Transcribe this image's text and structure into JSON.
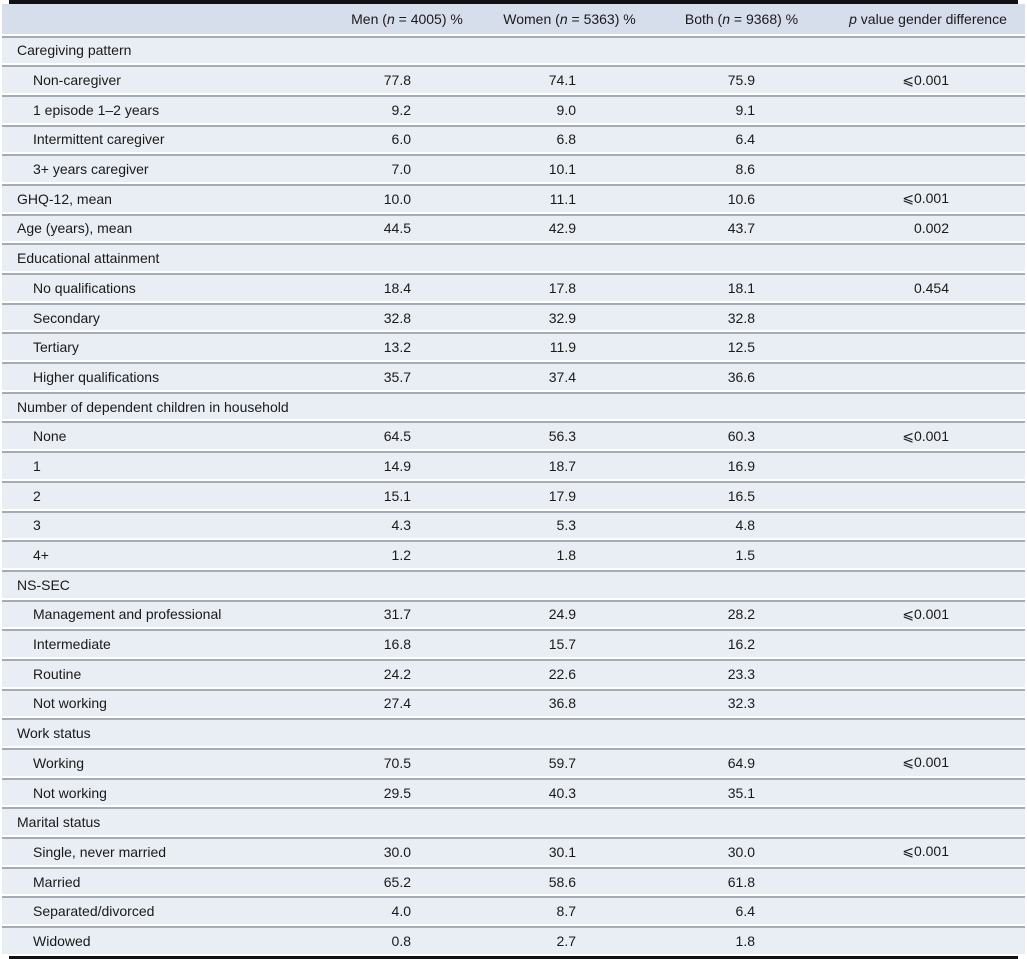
{
  "colors": {
    "outer_border": "#101114",
    "header_background": "#d6ddeb",
    "row_background": "#e9edf4",
    "row_separator": "#a5abb5",
    "text": "#1a1a1a"
  },
  "table": {
    "header": {
      "men": {
        "pre": "Men (",
        "italic": "n",
        "post": " = 4005) %"
      },
      "women": {
        "pre": "Women (",
        "italic": "n",
        "post": " = 5363) %"
      },
      "both": {
        "pre": "Both (",
        "italic": "n",
        "post": " = 9368) %"
      },
      "p": {
        "pre": "",
        "italic": "p",
        "post": " value gender difference"
      }
    },
    "rows": [
      {
        "label": "Caregiving pattern",
        "indent": false,
        "men": "",
        "women": "",
        "both": "",
        "p": ""
      },
      {
        "label": "Non-caregiver",
        "indent": true,
        "men": "77.8",
        "women": "74.1",
        "both": "75.9",
        "p": "⩽0.001"
      },
      {
        "label": "1 episode 1–2 years",
        "indent": true,
        "men": "9.2",
        "women": "9.0",
        "both": "9.1",
        "p": ""
      },
      {
        "label": "Intermittent caregiver",
        "indent": true,
        "men": "6.0",
        "women": "6.8",
        "both": "6.4",
        "p": ""
      },
      {
        "label": "3+ years caregiver",
        "indent": true,
        "men": "7.0",
        "women": "10.1",
        "both": "8.6",
        "p": ""
      },
      {
        "label": "GHQ-12, mean",
        "indent": false,
        "men": "10.0",
        "women": "11.1",
        "both": "10.6",
        "p": "⩽0.001"
      },
      {
        "label": "Age (years), mean",
        "indent": false,
        "men": "44.5",
        "women": "42.9",
        "both": "43.7",
        "p": "0.002"
      },
      {
        "label": "Educational attainment",
        "indent": false,
        "men": "",
        "women": "",
        "both": "",
        "p": ""
      },
      {
        "label": "No qualifications",
        "indent": true,
        "men": "18.4",
        "women": "17.8",
        "both": "18.1",
        "p": "0.454"
      },
      {
        "label": "Secondary",
        "indent": true,
        "men": "32.8",
        "women": "32.9",
        "both": "32.8",
        "p": ""
      },
      {
        "label": "Tertiary",
        "indent": true,
        "men": "13.2",
        "women": "11.9",
        "both": "12.5",
        "p": ""
      },
      {
        "label": "Higher qualifications",
        "indent": true,
        "men": "35.7",
        "women": "37.4",
        "both": "36.6",
        "p": ""
      },
      {
        "label": "Number of dependent children in household",
        "indent": false,
        "men": "",
        "women": "",
        "both": "",
        "p": ""
      },
      {
        "label": "None",
        "indent": true,
        "men": "64.5",
        "women": "56.3",
        "both": "60.3",
        "p": "⩽0.001"
      },
      {
        "label": "1",
        "indent": true,
        "men": "14.9",
        "women": "18.7",
        "both": "16.9",
        "p": ""
      },
      {
        "label": "2",
        "indent": true,
        "men": "15.1",
        "women": "17.9",
        "both": "16.5",
        "p": ""
      },
      {
        "label": "3",
        "indent": true,
        "men": "4.3",
        "women": "5.3",
        "both": "4.8",
        "p": ""
      },
      {
        "label": "4+",
        "indent": true,
        "men": "1.2",
        "women": "1.8",
        "both": "1.5",
        "p": ""
      },
      {
        "label": "NS-SEC",
        "indent": false,
        "men": "",
        "women": "",
        "both": "",
        "p": ""
      },
      {
        "label": "Management and professional",
        "indent": true,
        "men": "31.7",
        "women": "24.9",
        "both": "28.2",
        "p": "⩽0.001"
      },
      {
        "label": "Intermediate",
        "indent": true,
        "men": "16.8",
        "women": "15.7",
        "both": "16.2",
        "p": ""
      },
      {
        "label": "Routine",
        "indent": true,
        "men": "24.2",
        "women": "22.6",
        "both": "23.3",
        "p": ""
      },
      {
        "label": "Not working",
        "indent": true,
        "men": "27.4",
        "women": "36.8",
        "both": "32.3",
        "p": ""
      },
      {
        "label": "Work status",
        "indent": false,
        "men": "",
        "women": "",
        "both": "",
        "p": ""
      },
      {
        "label": "Working",
        "indent": true,
        "men": "70.5",
        "women": "59.7",
        "both": "64.9",
        "p": "⩽0.001"
      },
      {
        "label": "Not working",
        "indent": true,
        "men": "29.5",
        "women": "40.3",
        "both": "35.1",
        "p": ""
      },
      {
        "label": "Marital status",
        "indent": false,
        "men": "",
        "women": "",
        "both": "",
        "p": ""
      },
      {
        "label": "Single, never married",
        "indent": true,
        "men": "30.0",
        "women": "30.1",
        "both": "30.0",
        "p": "⩽0.001"
      },
      {
        "label": "Married",
        "indent": true,
        "men": "65.2",
        "women": "58.6",
        "both": "61.8",
        "p": ""
      },
      {
        "label": "Separated/divorced",
        "indent": true,
        "men": "4.0",
        "women": "8.7",
        "both": "6.4",
        "p": ""
      },
      {
        "label": "Widowed",
        "indent": true,
        "men": "0.8",
        "women": "2.7",
        "both": "1.8",
        "p": ""
      }
    ]
  }
}
